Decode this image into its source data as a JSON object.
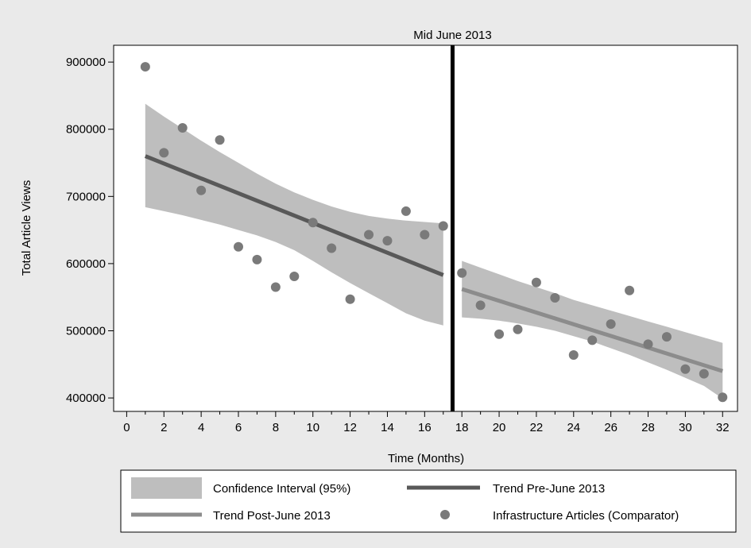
{
  "chart_data": {
    "type": "scatter",
    "title": "",
    "xlabel": "Time (Months)",
    "ylabel": "Total Article Views",
    "xlim": [
      -0.7,
      32.8
    ],
    "ylim": [
      380000,
      925000
    ],
    "x_ticks": [
      0,
      2,
      4,
      6,
      8,
      10,
      12,
      14,
      16,
      18,
      20,
      22,
      24,
      26,
      28,
      30,
      32
    ],
    "y_ticks": [
      400000,
      500000,
      600000,
      700000,
      800000,
      900000
    ],
    "y_tick_labels": [
      "400000",
      "500000",
      "600000",
      "700000",
      "800000",
      "900000"
    ],
    "grid": false,
    "legend_position": "bottom",
    "intervention": {
      "x": 17.5,
      "label": "Mid June 2013"
    },
    "points": {
      "name": "Infrastructure Articles (Comparator)",
      "x": [
        1,
        2,
        3,
        4,
        5,
        6,
        7,
        8,
        9,
        10,
        11,
        12,
        13,
        14,
        15,
        16,
        17,
        18,
        19,
        20,
        21,
        22,
        23,
        24,
        25,
        26,
        27,
        28,
        29,
        30,
        31,
        32
      ],
      "y": [
        893000,
        765000,
        802000,
        709000,
        784000,
        625000,
        606000,
        565000,
        581000,
        661000,
        623000,
        547000,
        643000,
        634000,
        678000,
        643000,
        656000,
        586000,
        538000,
        495000,
        502000,
        572000,
        549000,
        464000,
        486000,
        510000,
        560000,
        480000,
        491000,
        443000,
        436000,
        401000
      ]
    },
    "trend_pre": {
      "name": "Trend Pre-June 2013",
      "x": [
        1,
        17
      ],
      "y": [
        760000,
        583000
      ],
      "ci_lower": [
        684000,
        678000,
        672000,
        665000,
        658000,
        650000,
        642000,
        632000,
        620000,
        604000,
        587000,
        571000,
        556000,
        541000,
        526000,
        515000,
        508000
      ],
      "ci_upper": [
        838000,
        819000,
        801000,
        783000,
        766000,
        750000,
        734000,
        719000,
        706000,
        695000,
        685000,
        677000,
        671000,
        667000,
        664000,
        662000,
        660000
      ]
    },
    "trend_post": {
      "name": "Trend Post-June 2013",
      "x": [
        18,
        32
      ],
      "y": [
        562000,
        440000
      ],
      "ci_lower": [
        520000,
        518000,
        515000,
        511000,
        506000,
        500000,
        492000,
        484000,
        474000,
        464000,
        453000,
        442000,
        430000,
        418000,
        399000
      ],
      "ci_upper": [
        604000,
        594000,
        584000,
        574000,
        565000,
        556000,
        546000,
        538000,
        530000,
        522000,
        514000,
        506000,
        498000,
        490000,
        482000
      ]
    },
    "ci_name": "Confidence Interval (95%)",
    "colors": {
      "background": "#eaeaea",
      "plot_bg": "#ffffff",
      "ci_fill": "#bebebe",
      "trend_pre": "#595959",
      "trend_post": "#8c8c8c",
      "points": "#7a7a7a",
      "intervention_line": "#000000"
    }
  }
}
